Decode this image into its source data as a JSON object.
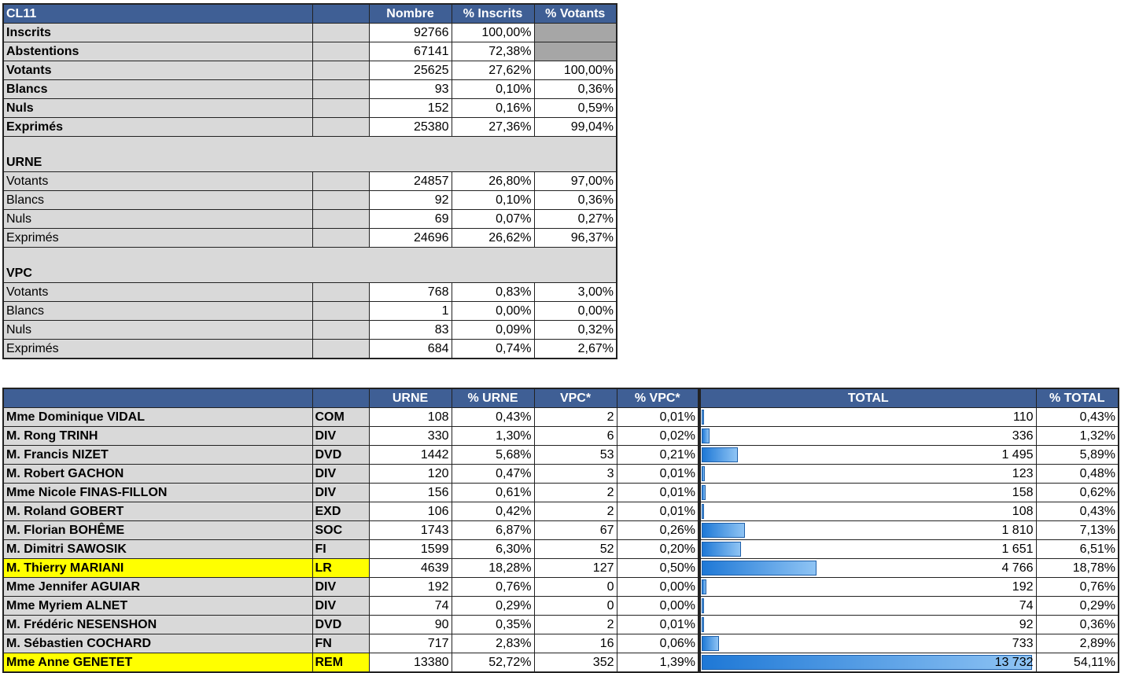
{
  "summary": {
    "title": "CL11",
    "headers": [
      "Nombre",
      "% Inscrits",
      "% Votants"
    ],
    "rows": [
      {
        "label": "Inscrits",
        "nombre": "92766",
        "pct_inscrits": "100,00%",
        "pct_votants": ""
      },
      {
        "label": "Abstentions",
        "nombre": "67141",
        "pct_inscrits": "72,38%",
        "pct_votants": ""
      },
      {
        "label": "Votants",
        "nombre": "25625",
        "pct_inscrits": "27,62%",
        "pct_votants": "100,00%"
      },
      {
        "label": "Blancs",
        "nombre": "93",
        "pct_inscrits": "0,10%",
        "pct_votants": "0,36%"
      },
      {
        "label": "Nuls",
        "nombre": "152",
        "pct_inscrits": "0,16%",
        "pct_votants": "0,59%"
      },
      {
        "label": "Exprimés",
        "nombre": "25380",
        "pct_inscrits": "27,36%",
        "pct_votants": "99,04%"
      }
    ],
    "sections": [
      {
        "name": "URNE",
        "rows": [
          {
            "label": "Votants",
            "nombre": "24857",
            "pct_inscrits": "26,80%",
            "pct_votants": "97,00%"
          },
          {
            "label": "Blancs",
            "nombre": "92",
            "pct_inscrits": "0,10%",
            "pct_votants": "0,36%"
          },
          {
            "label": "Nuls",
            "nombre": "69",
            "pct_inscrits": "0,07%",
            "pct_votants": "0,27%"
          },
          {
            "label": "Exprimés",
            "nombre": "24696",
            "pct_inscrits": "26,62%",
            "pct_votants": "96,37%"
          }
        ]
      },
      {
        "name": "VPC",
        "rows": [
          {
            "label": "Votants",
            "nombre": "768",
            "pct_inscrits": "0,83%",
            "pct_votants": "3,00%"
          },
          {
            "label": "Blancs",
            "nombre": "1",
            "pct_inscrits": "0,00%",
            "pct_votants": "0,00%"
          },
          {
            "label": "Nuls",
            "nombre": "83",
            "pct_inscrits": "0,09%",
            "pct_votants": "0,32%"
          },
          {
            "label": "Exprimés",
            "nombre": "684",
            "pct_inscrits": "0,74%",
            "pct_votants": "2,67%"
          }
        ]
      }
    ]
  },
  "candidates": {
    "headers": [
      "URNE",
      "% URNE",
      "VPC*",
      "% VPC*",
      "TOTAL",
      "% TOTAL"
    ],
    "highlight_color": "#ffff00",
    "bar_max": 13732,
    "rows": [
      {
        "name": "Mme Dominique VIDAL",
        "party": "COM",
        "urne": "108",
        "pct_urne": "0,43%",
        "vpc": "2",
        "pct_vpc": "0,01%",
        "total": "110",
        "total_value": 110,
        "pct_total": "0,43%",
        "highlight": false
      },
      {
        "name": "M. Rong TRINH",
        "party": "DIV",
        "urne": "330",
        "pct_urne": "1,30%",
        "vpc": "6",
        "pct_vpc": "0,02%",
        "total": "336",
        "total_value": 336,
        "pct_total": "1,32%",
        "highlight": false
      },
      {
        "name": "M. Francis NIZET",
        "party": "DVD",
        "urne": "1442",
        "pct_urne": "5,68%",
        "vpc": "53",
        "pct_vpc": "0,21%",
        "total": "1 495",
        "total_value": 1495,
        "pct_total": "5,89%",
        "highlight": false
      },
      {
        "name": "M. Robert GACHON",
        "party": "DIV",
        "urne": "120",
        "pct_urne": "0,47%",
        "vpc": "3",
        "pct_vpc": "0,01%",
        "total": "123",
        "total_value": 123,
        "pct_total": "0,48%",
        "highlight": false
      },
      {
        "name": "Mme Nicole FINAS-FILLON",
        "party": "DIV",
        "urne": "156",
        "pct_urne": "0,61%",
        "vpc": "2",
        "pct_vpc": "0,01%",
        "total": "158",
        "total_value": 158,
        "pct_total": "0,62%",
        "highlight": false
      },
      {
        "name": "M. Roland GOBERT",
        "party": "EXD",
        "urne": "106",
        "pct_urne": "0,42%",
        "vpc": "2",
        "pct_vpc": "0,01%",
        "total": "108",
        "total_value": 108,
        "pct_total": "0,43%",
        "highlight": false
      },
      {
        "name": "M. Florian BOHÊME",
        "party": "SOC",
        "urne": "1743",
        "pct_urne": "6,87%",
        "vpc": "67",
        "pct_vpc": "0,26%",
        "total": "1 810",
        "total_value": 1810,
        "pct_total": "7,13%",
        "highlight": false
      },
      {
        "name": "M. Dimitri SAWOSIK",
        "party": "FI",
        "urne": "1599",
        "pct_urne": "6,30%",
        "vpc": "52",
        "pct_vpc": "0,20%",
        "total": "1 651",
        "total_value": 1651,
        "pct_total": "6,51%",
        "highlight": false
      },
      {
        "name": "M. Thierry MARIANI",
        "party": "LR",
        "urne": "4639",
        "pct_urne": "18,28%",
        "vpc": "127",
        "pct_vpc": "0,50%",
        "total": "4 766",
        "total_value": 4766,
        "pct_total": "18,78%",
        "highlight": true
      },
      {
        "name": "Mme Jennifer AGUIAR",
        "party": "DIV",
        "urne": "192",
        "pct_urne": "0,76%",
        "vpc": "0",
        "pct_vpc": "0,00%",
        "total": "192",
        "total_value": 192,
        "pct_total": "0,76%",
        "highlight": false
      },
      {
        "name": "Mme Myriem ALNET",
        "party": "DIV",
        "urne": "74",
        "pct_urne": "0,29%",
        "vpc": "0",
        "pct_vpc": "0,00%",
        "total": "74",
        "total_value": 74,
        "pct_total": "0,29%",
        "highlight": false
      },
      {
        "name": "M. Frédéric NESENSHON",
        "party": "DVD",
        "urne": "90",
        "pct_urne": "0,35%",
        "vpc": "2",
        "pct_vpc": "0,01%",
        "total": "92",
        "total_value": 92,
        "pct_total": "0,36%",
        "highlight": false
      },
      {
        "name": "M. Sébastien COCHARD",
        "party": "FN",
        "urne": "717",
        "pct_urne": "2,83%",
        "vpc": "16",
        "pct_vpc": "0,06%",
        "total": "733",
        "total_value": 733,
        "pct_total": "2,89%",
        "highlight": false
      },
      {
        "name": "Mme Anne GENETET",
        "party": "REM",
        "urne": "13380",
        "pct_urne": "52,72%",
        "vpc": "352",
        "pct_vpc": "1,39%",
        "total": "13 732",
        "total_value": 13732,
        "pct_total": "54,11%",
        "highlight": true
      }
    ]
  }
}
